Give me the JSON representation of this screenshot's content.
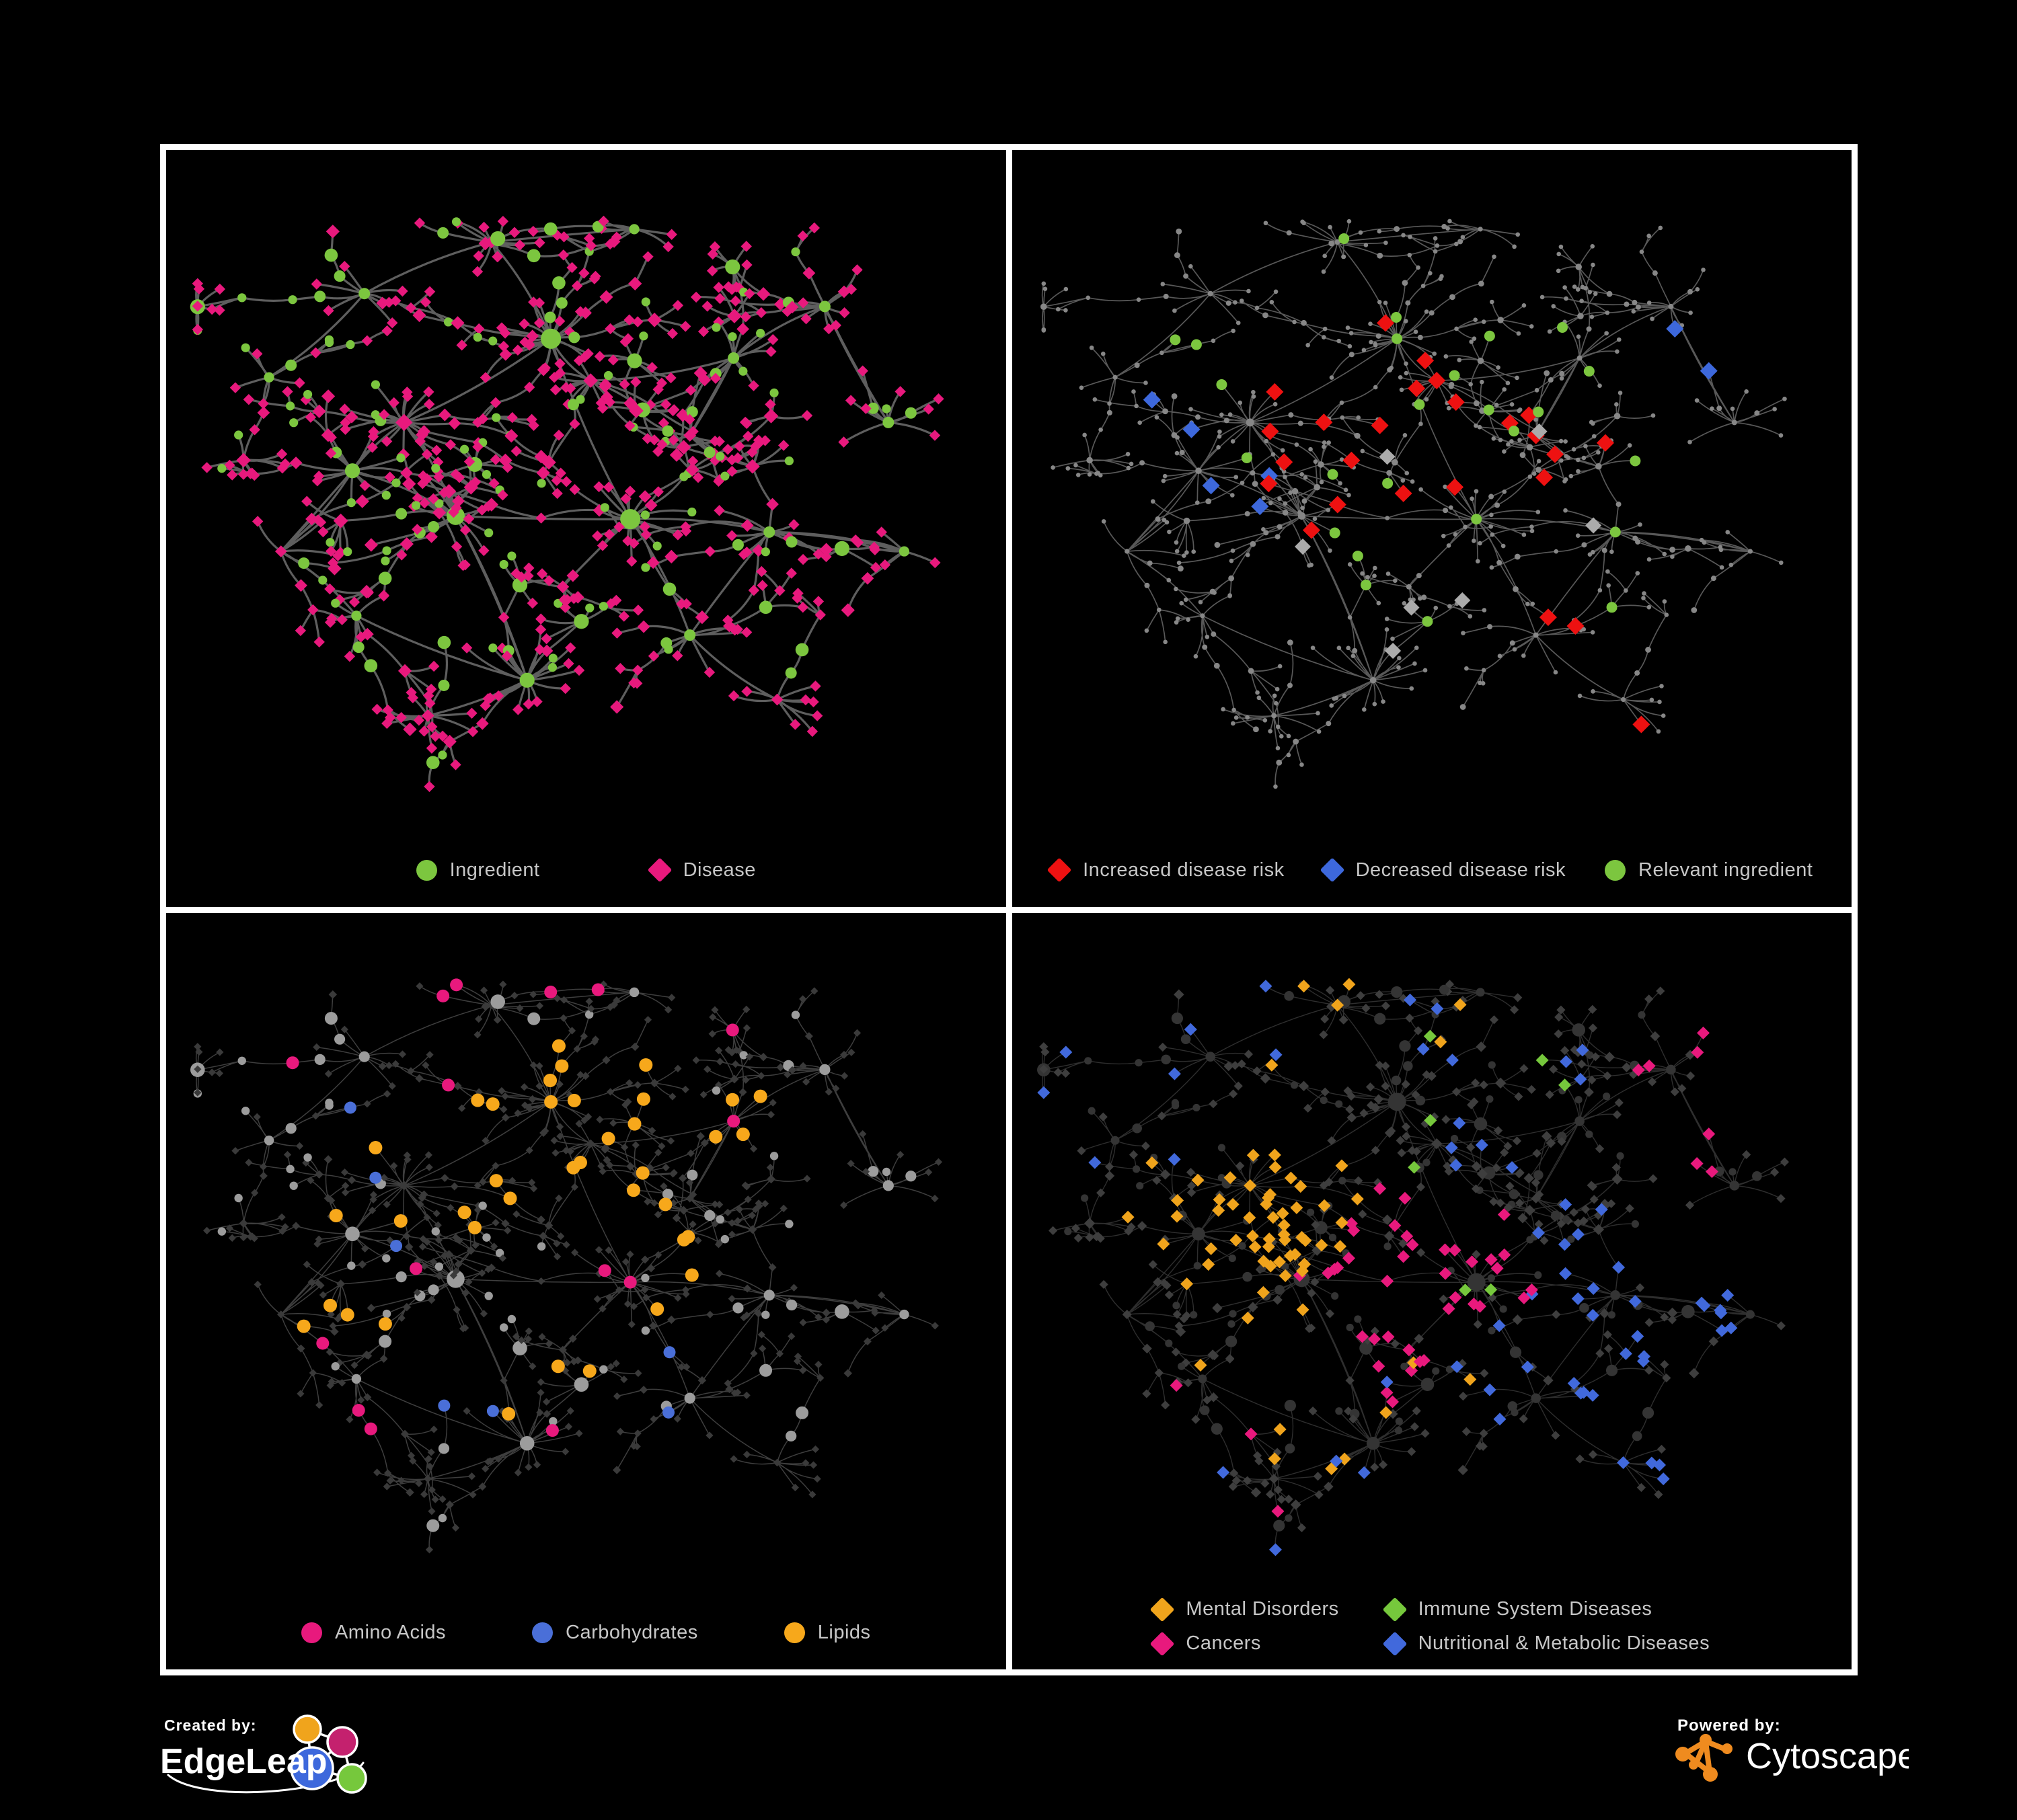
{
  "page": {
    "background": "#000000",
    "frame_color": "#ffffff"
  },
  "panels": [
    {
      "name": "ingredient-disease-network",
      "legend": [
        {
          "label": "Ingredient",
          "shape": "circle",
          "color": "#7CC63F"
        },
        {
          "label": "Disease",
          "shape": "diamond",
          "color": "#E8197D"
        }
      ],
      "style": {
        "edge": "#6E6E6E",
        "edgeW": 3.2,
        "edgeO": 0.85,
        "ing": {
          "shape": "circle",
          "color": "#7CC63F",
          "r": 6.6,
          "exp": 0.75
        },
        "dis": {
          "shape": "diamond",
          "color": "#E8197D",
          "r": 8.2,
          "exp": 0.4
        }
      },
      "hseed": 11,
      "highlights": []
    },
    {
      "name": "disease-risk-network",
      "legend": [
        {
          "label": "Increased disease risk",
          "shape": "diamond",
          "color": "#EE1111"
        },
        {
          "label": "Decreased disease risk",
          "shape": "diamond",
          "color": "#3D68DC"
        },
        {
          "label": "Relevant ingredient",
          "shape": "circle",
          "color": "#7CC63F"
        }
      ],
      "style": {
        "edge": "#626262",
        "edgeW": 1.7,
        "edgeO": 0.9,
        "ing": {
          "shape": "circle",
          "color": "#878787",
          "r": 3.3,
          "exp": 0.55
        },
        "dis": {
          "shape": "circle",
          "color": "#878787",
          "r": 3.3,
          "exp": 0.55
        }
      },
      "hseed": 1702,
      "highlights": [
        {
          "color": "#EE1111",
          "shape": "diamond",
          "size": 13,
          "target": "dis",
          "count": 18,
          "region": [
            0.46,
            0.44,
            0.2
          ]
        },
        {
          "color": "#EE1111",
          "shape": "diamond",
          "size": 13,
          "target": "dis",
          "count": 4,
          "region": [
            0.72,
            0.38,
            0.14
          ]
        },
        {
          "color": "#EE1111",
          "shape": "diamond",
          "size": 13,
          "target": "dis",
          "count": 3,
          "region": [
            0.7,
            0.8,
            0.12
          ]
        },
        {
          "color": "#3D68DC",
          "shape": "diamond",
          "size": 13,
          "target": "dis",
          "count": 5,
          "region": [
            0.24,
            0.43,
            0.13
          ]
        },
        {
          "color": "#3D68DC",
          "shape": "diamond",
          "size": 13,
          "target": "dis",
          "count": 2,
          "region": [
            0.8,
            0.28,
            0.09
          ]
        },
        {
          "color": "#ABABAB",
          "shape": "diamond",
          "size": 12,
          "target": "dis",
          "count": 7,
          "region": [
            0.44,
            0.47,
            0.3
          ]
        },
        {
          "color": "#7CC63F",
          "shape": "circle",
          "size": 8,
          "target": "ing",
          "count": 22,
          "region": [
            0.43,
            0.42,
            0.32
          ]
        },
        {
          "color": "#7CC63F",
          "shape": "circle",
          "size": 8,
          "target": "ing",
          "count": 3,
          "region": [
            0.78,
            0.6,
            0.15
          ]
        }
      ]
    },
    {
      "name": "nutrient-class-network",
      "legend": [
        {
          "label": "Amino Acids",
          "shape": "circle",
          "color": "#E8197D"
        },
        {
          "label": "Carbohydrates",
          "shape": "circle",
          "color": "#4A6FD8"
        },
        {
          "label": "Lipids",
          "shape": "circle",
          "color": "#F7A81B"
        }
      ],
      "style": {
        "edge": "#9A9A9A",
        "edgeW": 1.5,
        "edgeO": 0.4,
        "ing": {
          "shape": "circle",
          "color": "#9C9C9C",
          "r": 6.2,
          "exp": 0.8
        },
        "dis": {
          "shape": "diamond",
          "color": "#3A3A3A",
          "r": 5.6,
          "exp": 0.2
        }
      },
      "hseed": 407,
      "highlights": [
        {
          "color": "#F7A81B",
          "shape": "circle",
          "size": 10,
          "target": "ing",
          "count": 34,
          "region": [
            0.47,
            0.3,
            0.14
          ]
        },
        {
          "color": "#F7A81B",
          "shape": "circle",
          "size": 10,
          "target": "ing",
          "count": 16,
          "region": [
            0.45,
            0.55,
            0.38
          ]
        },
        {
          "color": "#F7A81B",
          "shape": "circle",
          "size": 10,
          "target": "ing",
          "count": 5,
          "region": [
            0.75,
            0.4,
            0.22
          ]
        },
        {
          "color": "#4A6FD8",
          "shape": "circle",
          "size": 9,
          "target": "ing",
          "count": 9,
          "region": [
            0.49,
            0.3,
            0.13
          ]
        },
        {
          "color": "#4A6FD8",
          "shape": "circle",
          "size": 9,
          "target": "ing",
          "count": 4,
          "region": [
            0.55,
            0.7,
            0.35
          ]
        },
        {
          "color": "#4A6FD8",
          "shape": "circle",
          "size": 9,
          "target": "ing",
          "count": 3,
          "region": [
            0.2,
            0.35,
            0.25
          ]
        },
        {
          "color": "#E8197D",
          "shape": "circle",
          "size": 9.5,
          "target": "ing",
          "count": 15,
          "region": [
            0.45,
            0.5,
            0.52
          ]
        }
      ]
    },
    {
      "name": "disease-class-network",
      "legend": [
        {
          "label": "Mental Disorders",
          "shape": "diamond",
          "color": "#F0A41C"
        },
        {
          "label": "Immune System Diseases",
          "shape": "diamond",
          "color": "#76C83C"
        },
        {
          "label": "Cancers",
          "shape": "diamond",
          "color": "#E8197D"
        },
        {
          "label": "Nutritional & Metabolic Diseases",
          "shape": "diamond",
          "color": "#4169DC"
        }
      ],
      "style": {
        "edge": "#8E8E8E",
        "edgeW": 1.4,
        "edgeO": 0.32,
        "ing": {
          "shape": "circle",
          "color": "#343434",
          "r": 5.6,
          "exp": 0.8
        },
        "dis": {
          "shape": "diamond",
          "color": "#3E3E3E",
          "r": 6.6,
          "exp": 0.3
        }
      },
      "hseed": 88,
      "highlights": [
        {
          "color": "#F0A41C",
          "shape": "diamond",
          "size": 9.5,
          "target": "dis",
          "count": 52,
          "region": [
            0.26,
            0.43,
            0.15
          ]
        },
        {
          "color": "#F0A41C",
          "shape": "diamond",
          "size": 9.5,
          "target": "dis",
          "count": 10,
          "region": [
            0.33,
            0.72,
            0.22
          ]
        },
        {
          "color": "#F0A41C",
          "shape": "diamond",
          "size": 9.5,
          "target": "dis",
          "count": 6,
          "region": [
            0.45,
            0.12,
            0.18
          ]
        },
        {
          "color": "#E8197D",
          "shape": "diamond",
          "size": 9.5,
          "target": "dis",
          "count": 36,
          "region": [
            0.48,
            0.54,
            0.15
          ]
        },
        {
          "color": "#E8197D",
          "shape": "diamond",
          "size": 9.5,
          "target": "dis",
          "count": 7,
          "region": [
            0.86,
            0.25,
            0.13
          ]
        },
        {
          "color": "#E8197D",
          "shape": "diamond",
          "size": 9.5,
          "target": "dis",
          "count": 5,
          "region": [
            0.3,
            0.85,
            0.2
          ]
        },
        {
          "color": "#4169DC",
          "shape": "diamond",
          "size": 9.5,
          "target": "dis",
          "count": 22,
          "region": [
            0.72,
            0.56,
            0.17
          ]
        },
        {
          "color": "#4169DC",
          "shape": "diamond",
          "size": 9.5,
          "target": "dis",
          "count": 12,
          "region": [
            0.66,
            0.2,
            0.22
          ]
        },
        {
          "color": "#4169DC",
          "shape": "diamond",
          "size": 9.5,
          "target": "dis",
          "count": 9,
          "region": [
            0.86,
            0.72,
            0.16
          ]
        },
        {
          "color": "#4169DC",
          "shape": "diamond",
          "size": 9.5,
          "target": "dis",
          "count": 10,
          "region": [
            0.5,
            0.88,
            0.3
          ]
        },
        {
          "color": "#4169DC",
          "shape": "diamond",
          "size": 9.5,
          "target": "dis",
          "count": 8,
          "region": [
            0.12,
            0.18,
            0.22
          ]
        },
        {
          "color": "#76C83C",
          "shape": "diamond",
          "size": 9.5,
          "target": "dis",
          "count": 7,
          "region": [
            0.52,
            0.45,
            0.3
          ]
        }
      ]
    }
  ],
  "network": {
    "seed": 42,
    "hubs": [
      [
        0.455,
        0.27,
        24,
        0.045,
        3
      ],
      [
        0.505,
        0.335,
        13,
        0.035,
        2
      ],
      [
        0.27,
        0.4,
        20,
        0.055,
        3
      ],
      [
        0.205,
        0.475,
        14,
        0.05,
        2
      ],
      [
        0.335,
        0.545,
        16,
        0.05,
        2.6
      ],
      [
        0.555,
        0.55,
        18,
        0.06,
        3
      ],
      [
        0.425,
        0.8,
        22,
        0.065,
        2
      ],
      [
        0.3,
        0.855,
        11,
        0.05,
        1.4
      ],
      [
        0.685,
        0.3,
        11,
        0.05,
        1.4
      ],
      [
        0.8,
        0.22,
        13,
        0.05,
        1.4
      ],
      [
        0.88,
        0.4,
        9,
        0.045,
        1.4
      ],
      [
        0.73,
        0.57,
        13,
        0.05,
        1.4
      ],
      [
        0.63,
        0.42,
        9,
        0.04,
        1.4
      ],
      [
        0.38,
        0.12,
        9,
        0.045,
        1.4
      ],
      [
        0.56,
        0.1,
        7,
        0.04,
        1.2
      ],
      [
        0.22,
        0.2,
        9,
        0.045,
        1.4
      ],
      [
        0.1,
        0.33,
        7,
        0.045,
        1.2
      ],
      [
        0.115,
        0.6,
        8,
        0.05,
        1.2
      ],
      [
        0.21,
        0.7,
        8,
        0.05,
        1.2
      ],
      [
        0.63,
        0.73,
        9,
        0.05,
        1.4
      ],
      [
        0.74,
        0.83,
        9,
        0.05,
        1.2
      ],
      [
        0.9,
        0.6,
        7,
        0.045,
        1.2
      ],
      [
        0.47,
        0.655,
        7,
        0.04,
        1.4
      ]
    ],
    "links": [
      [
        0,
        5
      ],
      [
        4,
        6
      ],
      [
        11,
        21
      ],
      [
        9,
        10
      ],
      [
        3,
        17
      ],
      [
        18,
        6
      ],
      [
        5,
        19
      ],
      [
        2,
        4
      ],
      [
        8,
        12
      ]
    ]
  },
  "footer": {
    "created_by": {
      "label": "Created by:",
      "brand": "EdgeLeap",
      "logo_colors": {
        "orange": "#F0A41C",
        "magenta": "#C4216E",
        "blue": "#3D68DC",
        "green": "#76C83C"
      }
    },
    "powered_by": {
      "label": "Powered by:",
      "brand": "Cytoscape",
      "logo_color": "#EF8B1F"
    }
  }
}
